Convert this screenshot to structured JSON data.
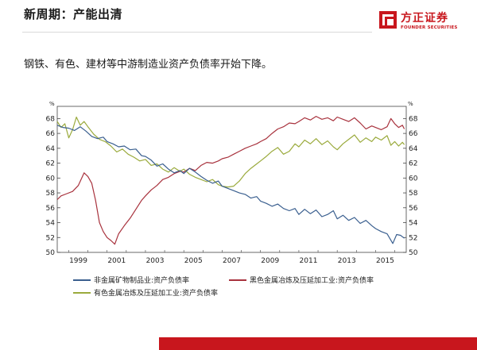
{
  "slide": {
    "title": "新周期：产能出清",
    "subtitle": "钢铁、有色、建材等中游制造业资产负债率开始下降。"
  },
  "logo": {
    "name_cn": "方正证券",
    "name_en": "FOUNDER SECURITIES"
  },
  "colors": {
    "brand_red": "#c8161d",
    "series_blue": "#3a5f8f",
    "series_red": "#a8323d",
    "series_green": "#9aaa3c"
  },
  "chart_data": {
    "type": "line",
    "left_axis_unit": "%",
    "right_axis_unit": "%",
    "ylim": [
      50,
      69
    ],
    "yticks": [
      50,
      52,
      54,
      56,
      58,
      60,
      62,
      64,
      66,
      68
    ],
    "xlim": [
      1998.4,
      2016.6
    ],
    "xticks": [
      "1999",
      "2001",
      "2003",
      "2005",
      "2007",
      "2009",
      "2011",
      "2013",
      "2015"
    ],
    "grid": false,
    "legend_position": "bottom",
    "series": [
      {
        "name": "非金属矿物制品业:资产负债率",
        "color": "#3a5f8f",
        "points": [
          [
            1998.4,
            67.1
          ],
          [
            1998.7,
            66.8
          ],
          [
            1999.0,
            66.7
          ],
          [
            1999.3,
            66.4
          ],
          [
            1999.6,
            66.9
          ],
          [
            1999.9,
            66.3
          ],
          [
            2000.2,
            65.6
          ],
          [
            2000.5,
            65.3
          ],
          [
            2000.8,
            65.5
          ],
          [
            2001.0,
            64.9
          ],
          [
            2001.3,
            64.6
          ],
          [
            2001.6,
            64.2
          ],
          [
            2001.9,
            64.3
          ],
          [
            2002.2,
            63.8
          ],
          [
            2002.5,
            63.9
          ],
          [
            2002.8,
            63.0
          ],
          [
            2003.0,
            62.9
          ],
          [
            2003.3,
            62.4
          ],
          [
            2003.6,
            61.6
          ],
          [
            2003.9,
            61.9
          ],
          [
            2004.2,
            61.2
          ],
          [
            2004.5,
            60.7
          ],
          [
            2004.8,
            61.0
          ],
          [
            2005.0,
            60.6
          ],
          [
            2005.3,
            61.3
          ],
          [
            2005.6,
            60.8
          ],
          [
            2005.9,
            60.2
          ],
          [
            2006.2,
            59.7
          ],
          [
            2006.5,
            59.3
          ],
          [
            2006.8,
            59.6
          ],
          [
            2007.0,
            58.9
          ],
          [
            2007.3,
            58.6
          ],
          [
            2007.6,
            58.3
          ],
          [
            2007.9,
            58.0
          ],
          [
            2008.2,
            57.8
          ],
          [
            2008.5,
            57.3
          ],
          [
            2008.8,
            57.5
          ],
          [
            2009.0,
            56.9
          ],
          [
            2009.3,
            56.6
          ],
          [
            2009.6,
            56.2
          ],
          [
            2009.9,
            56.5
          ],
          [
            2010.2,
            55.9
          ],
          [
            2010.5,
            55.6
          ],
          [
            2010.8,
            55.9
          ],
          [
            2011.0,
            55.1
          ],
          [
            2011.3,
            55.8
          ],
          [
            2011.6,
            55.2
          ],
          [
            2011.9,
            55.7
          ],
          [
            2012.2,
            54.8
          ],
          [
            2012.5,
            55.1
          ],
          [
            2012.8,
            55.6
          ],
          [
            2013.0,
            54.5
          ],
          [
            2013.3,
            55.0
          ],
          [
            2013.6,
            54.3
          ],
          [
            2013.9,
            54.7
          ],
          [
            2014.2,
            53.9
          ],
          [
            2014.5,
            54.3
          ],
          [
            2014.8,
            53.6
          ],
          [
            2015.0,
            53.2
          ],
          [
            2015.3,
            52.8
          ],
          [
            2015.6,
            52.5
          ],
          [
            2015.9,
            51.2
          ],
          [
            2016.1,
            52.4
          ],
          [
            2016.3,
            52.3
          ],
          [
            2016.5,
            51.9
          ]
        ]
      },
      {
        "name": "黑色金属冶炼及压延加工业:资产负债率",
        "color": "#a8323d",
        "points": [
          [
            1998.4,
            57.1
          ],
          [
            1998.6,
            57.6
          ],
          [
            1998.9,
            57.9
          ],
          [
            1999.2,
            58.2
          ],
          [
            1999.5,
            59.0
          ],
          [
            1999.8,
            60.7
          ],
          [
            2000.0,
            60.2
          ],
          [
            2000.2,
            59.3
          ],
          [
            2000.4,
            57.0
          ],
          [
            2000.6,
            54.0
          ],
          [
            2000.8,
            52.8
          ],
          [
            2001.0,
            52.0
          ],
          [
            2001.2,
            51.6
          ],
          [
            2001.4,
            51.1
          ],
          [
            2001.6,
            52.5
          ],
          [
            2001.9,
            53.6
          ],
          [
            2002.2,
            54.6
          ],
          [
            2002.5,
            55.8
          ],
          [
            2002.8,
            57.0
          ],
          [
            2003.0,
            57.6
          ],
          [
            2003.3,
            58.4
          ],
          [
            2003.6,
            59.0
          ],
          [
            2003.9,
            59.8
          ],
          [
            2004.2,
            60.1
          ],
          [
            2004.5,
            60.6
          ],
          [
            2004.8,
            60.9
          ],
          [
            2005.0,
            60.8
          ],
          [
            2005.3,
            61.3
          ],
          [
            2005.6,
            61.0
          ],
          [
            2005.9,
            61.7
          ],
          [
            2006.2,
            62.1
          ],
          [
            2006.5,
            62.0
          ],
          [
            2006.8,
            62.3
          ],
          [
            2007.0,
            62.6
          ],
          [
            2007.3,
            62.8
          ],
          [
            2007.6,
            63.2
          ],
          [
            2007.9,
            63.6
          ],
          [
            2008.2,
            64.0
          ],
          [
            2008.5,
            64.3
          ],
          [
            2008.8,
            64.6
          ],
          [
            2009.0,
            64.9
          ],
          [
            2009.3,
            65.3
          ],
          [
            2009.6,
            66.0
          ],
          [
            2009.9,
            66.6
          ],
          [
            2010.2,
            66.9
          ],
          [
            2010.5,
            67.4
          ],
          [
            2010.8,
            67.3
          ],
          [
            2011.0,
            67.6
          ],
          [
            2011.3,
            68.1
          ],
          [
            2011.6,
            67.8
          ],
          [
            2011.9,
            68.3
          ],
          [
            2012.2,
            67.9
          ],
          [
            2012.5,
            68.1
          ],
          [
            2012.8,
            67.7
          ],
          [
            2013.0,
            68.2
          ],
          [
            2013.3,
            67.9
          ],
          [
            2013.6,
            67.6
          ],
          [
            2013.9,
            68.1
          ],
          [
            2014.2,
            67.4
          ],
          [
            2014.5,
            66.6
          ],
          [
            2014.8,
            67.0
          ],
          [
            2015.0,
            66.8
          ],
          [
            2015.3,
            66.5
          ],
          [
            2015.6,
            66.9
          ],
          [
            2015.8,
            68.0
          ],
          [
            2016.0,
            67.3
          ],
          [
            2016.2,
            66.8
          ],
          [
            2016.4,
            67.1
          ],
          [
            2016.5,
            66.6
          ]
        ]
      },
      {
        "name": "有色金属冶炼及压延加工业:资产负债率",
        "color": "#9aaa3c",
        "points": [
          [
            1998.4,
            67.6
          ],
          [
            1998.6,
            66.8
          ],
          [
            1998.8,
            67.3
          ],
          [
            1999.0,
            65.4
          ],
          [
            1999.2,
            66.5
          ],
          [
            1999.4,
            68.2
          ],
          [
            1999.6,
            67.1
          ],
          [
            1999.8,
            67.6
          ],
          [
            2000.0,
            66.9
          ],
          [
            2000.3,
            65.9
          ],
          [
            2000.6,
            65.2
          ],
          [
            2000.9,
            64.9
          ],
          [
            2001.2,
            64.3
          ],
          [
            2001.5,
            63.5
          ],
          [
            2001.8,
            63.9
          ],
          [
            2002.1,
            63.2
          ],
          [
            2002.4,
            62.8
          ],
          [
            2002.7,
            62.3
          ],
          [
            2003.0,
            62.5
          ],
          [
            2003.3,
            61.7
          ],
          [
            2003.6,
            61.9
          ],
          [
            2003.9,
            61.2
          ],
          [
            2004.2,
            60.8
          ],
          [
            2004.5,
            61.4
          ],
          [
            2004.8,
            60.9
          ],
          [
            2005.0,
            61.2
          ],
          [
            2005.3,
            60.5
          ],
          [
            2005.6,
            60.1
          ],
          [
            2005.9,
            59.8
          ],
          [
            2006.2,
            59.5
          ],
          [
            2006.5,
            59.8
          ],
          [
            2006.8,
            59.1
          ],
          [
            2007.0,
            58.9
          ],
          [
            2007.3,
            58.8
          ],
          [
            2007.6,
            58.9
          ],
          [
            2007.9,
            59.6
          ],
          [
            2008.2,
            60.6
          ],
          [
            2008.5,
            61.3
          ],
          [
            2008.8,
            61.9
          ],
          [
            2009.0,
            62.3
          ],
          [
            2009.3,
            62.9
          ],
          [
            2009.6,
            63.6
          ],
          [
            2009.9,
            64.1
          ],
          [
            2010.2,
            63.2
          ],
          [
            2010.5,
            63.6
          ],
          [
            2010.8,
            64.6
          ],
          [
            2011.0,
            64.2
          ],
          [
            2011.3,
            65.1
          ],
          [
            2011.6,
            64.6
          ],
          [
            2011.9,
            65.3
          ],
          [
            2012.2,
            64.5
          ],
          [
            2012.5,
            65.0
          ],
          [
            2012.8,
            64.2
          ],
          [
            2013.0,
            63.8
          ],
          [
            2013.3,
            64.6
          ],
          [
            2013.6,
            65.2
          ],
          [
            2013.9,
            65.8
          ],
          [
            2014.2,
            64.8
          ],
          [
            2014.5,
            65.4
          ],
          [
            2014.8,
            64.9
          ],
          [
            2015.0,
            65.5
          ],
          [
            2015.3,
            65.1
          ],
          [
            2015.6,
            65.7
          ],
          [
            2015.8,
            64.4
          ],
          [
            2016.0,
            64.9
          ],
          [
            2016.2,
            64.3
          ],
          [
            2016.4,
            64.8
          ],
          [
            2016.5,
            64.5
          ]
        ]
      }
    ]
  }
}
